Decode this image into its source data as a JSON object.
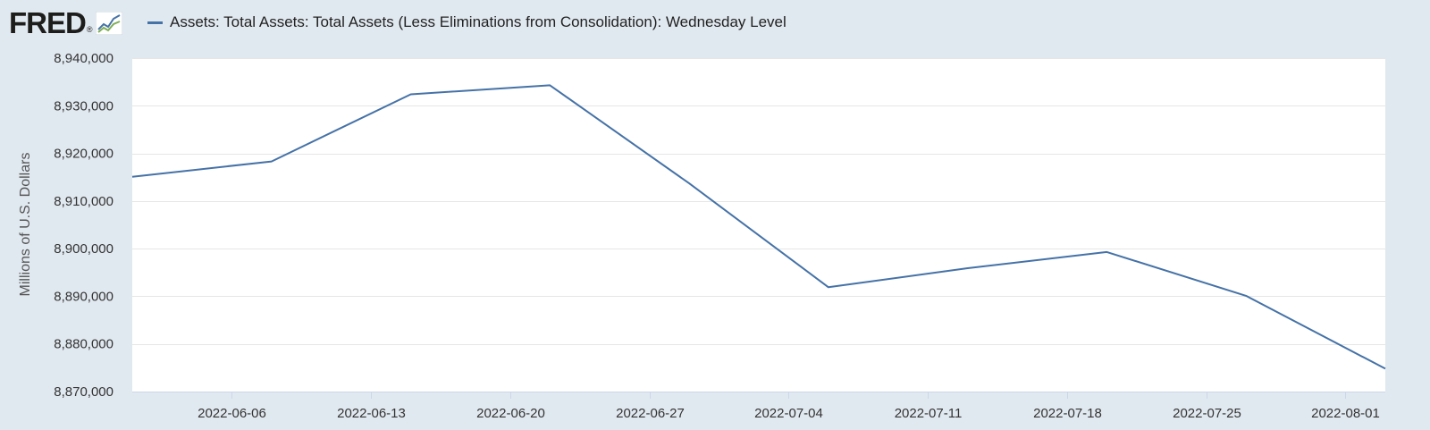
{
  "header": {
    "logo_text": "FRED",
    "logo_reg": "®",
    "logo_icon": "line-chart-icon"
  },
  "colors": {
    "series": "#4572a7",
    "background": "#e1e9f0",
    "plot_background": "#ffffff",
    "grid": "#e6e6e6"
  },
  "chart_data": {
    "type": "line",
    "title": "",
    "xlabel": "",
    "ylabel": "Millions of U.S. Dollars",
    "x_tick_labels": [
      "2022-06-06",
      "2022-06-13",
      "2022-06-20",
      "2022-06-27",
      "2022-07-04",
      "2022-07-11",
      "2022-07-18",
      "2022-07-25",
      "2022-08-01"
    ],
    "y_tick_values": [
      8870000,
      8880000,
      8890000,
      8900000,
      8910000,
      8920000,
      8930000,
      8940000
    ],
    "y_tick_labels": [
      "8,870,000",
      "8,880,000",
      "8,890,000",
      "8,900,000",
      "8,910,000",
      "8,920,000",
      "8,930,000",
      "8,940,000"
    ],
    "xlim": [
      "2022-06-01",
      "2022-08-03"
    ],
    "ylim": [
      8870000,
      8940000
    ],
    "grid": true,
    "legend_position": "top-left",
    "series": [
      {
        "name": "Assets: Total Assets: Total Assets (Less Eliminations from Consolidation): Wednesday Level",
        "x": [
          "2022-06-01",
          "2022-06-08",
          "2022-06-15",
          "2022-06-22",
          "2022-06-29",
          "2022-07-06",
          "2022-07-13",
          "2022-07-20",
          "2022-07-27",
          "2022-08-03"
        ],
        "y": [
          8915100,
          8918300,
          8932400,
          8934300,
          8913700,
          8891900,
          8895900,
          8899300,
          8890100,
          8874800
        ]
      }
    ]
  }
}
